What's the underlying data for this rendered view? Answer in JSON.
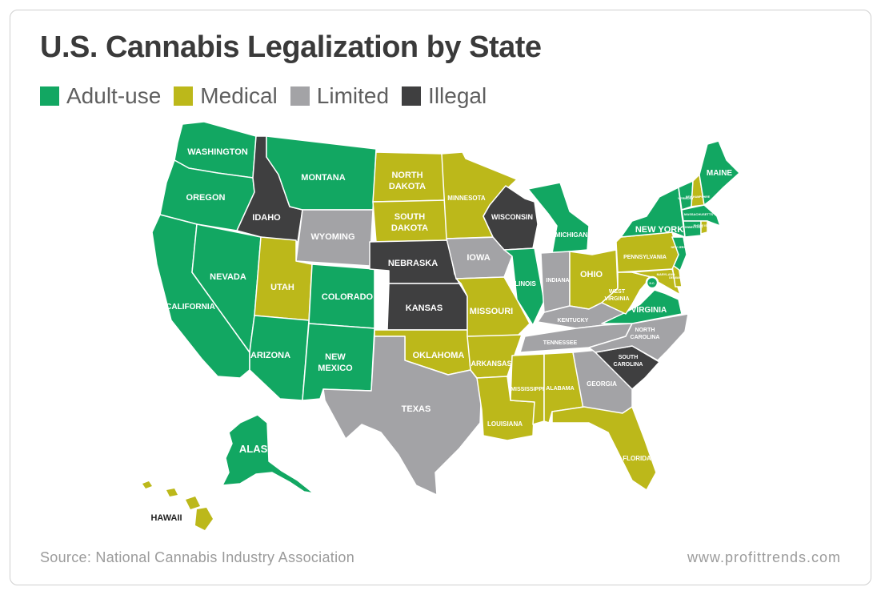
{
  "title": "U.S. Cannabis Legalization by State",
  "legend": [
    {
      "label": "Adult-use",
      "color": "#12a762"
    },
    {
      "label": "Medical",
      "color": "#bcb81a"
    },
    {
      "label": "Limited",
      "color": "#a3a3a6"
    },
    {
      "label": "Illegal",
      "color": "#3f3f40"
    }
  ],
  "source": "Source: National Cannabis Industry Association",
  "website": "www.profittrends.com",
  "colors": {
    "adult": "#12a762",
    "medical": "#bcb81a",
    "limited": "#a3a3a6",
    "illegal": "#3f3f40"
  },
  "states": {
    "washington": {
      "name": "WASHINGTON",
      "status": "Adult-use"
    },
    "oregon": {
      "name": "OREGON",
      "status": "Adult-use"
    },
    "california": {
      "name": "CALIFORNIA",
      "status": "Adult-use"
    },
    "nevada": {
      "name": "NEVADA",
      "status": "Adult-use"
    },
    "idaho": {
      "name": "IDAHO",
      "status": "Illegal"
    },
    "montana": {
      "name": "MONTANA",
      "status": "Adult-use"
    },
    "wyoming": {
      "name": "WYOMING",
      "status": "Limited"
    },
    "utah": {
      "name": "UTAH",
      "status": "Medical"
    },
    "colorado": {
      "name": "COLORADO",
      "status": "Adult-use"
    },
    "arizona": {
      "name": "ARIZONA",
      "status": "Adult-use"
    },
    "new_mexico": {
      "name_line1": "NEW",
      "name_line2": "MEXICO",
      "status": "Adult-use"
    },
    "north_dakota": {
      "name_line1": "NORTH",
      "name_line2": "DAKOTA",
      "status": "Medical"
    },
    "south_dakota": {
      "name_line1": "SOUTH",
      "name_line2": "DAKOTA",
      "status": "Medical"
    },
    "nebraska": {
      "name": "NEBRASKA",
      "status": "Illegal"
    },
    "kansas": {
      "name": "KANSAS",
      "status": "Illegal"
    },
    "oklahoma": {
      "name": "OKLAHOMA",
      "status": "Medical"
    },
    "texas": {
      "name": "TEXAS",
      "status": "Limited"
    },
    "minnesota": {
      "name": "MINNESOTA",
      "status": "Medical"
    },
    "iowa": {
      "name": "IOWA",
      "status": "Limited"
    },
    "missouri": {
      "name": "MISSOURI",
      "status": "Medical"
    },
    "arkansas": {
      "name": "ARKANSAS",
      "status": "Medical"
    },
    "louisiana": {
      "name": "LOUISIANA",
      "status": "Medical"
    },
    "wisconsin": {
      "name": "WISCONSIN",
      "status": "Illegal"
    },
    "illinois": {
      "name": "ILLINOIS",
      "status": "Adult-use"
    },
    "michigan": {
      "name": "MICHIGAN",
      "status": "Adult-use"
    },
    "indiana": {
      "name": "INDIANA",
      "status": "Limited"
    },
    "ohio": {
      "name": "OHIO",
      "status": "Medical"
    },
    "kentucky": {
      "name": "KENTUCKY",
      "status": "Limited"
    },
    "tennessee": {
      "name": "TENNESSEE",
      "status": "Limited"
    },
    "mississippi": {
      "name": "MISSISSIPPI",
      "status": "Medical"
    },
    "alabama": {
      "name": "ALABAMA",
      "status": "Medical"
    },
    "georgia": {
      "name": "GEORGIA",
      "status": "Limited"
    },
    "florida": {
      "name": "FLORIDA",
      "status": "Medical"
    },
    "south_carolina": {
      "name_line1": "SOUTH",
      "name_line2": "CAROLINA",
      "status": "Illegal"
    },
    "north_carolina": {
      "name_line1": "NORTH",
      "name_line2": "CAROLINA",
      "status": "Limited"
    },
    "virginia": {
      "name": "VIRGINIA",
      "status": "Adult-use"
    },
    "west_virginia": {
      "name_line1": "WEST",
      "name_line2": "VIRGINIA",
      "status": "Medical"
    },
    "pennsylvania": {
      "name": "PENNSYLVANIA",
      "status": "Medical"
    },
    "new_york": {
      "name": "NEW YORK",
      "status": "Adult-use"
    },
    "maine": {
      "name": "MAINE",
      "status": "Adult-use"
    },
    "vermont": {
      "name": "VERMONT",
      "status": "Adult-use"
    },
    "new_hampshire": {
      "name": "NEW HAMPSHIRE",
      "status": "Medical"
    },
    "massachusetts": {
      "name": "MASSACHUSETTS",
      "status": "Adult-use"
    },
    "connecticut": {
      "name": "CONNECTICUT",
      "status": "Adult-use"
    },
    "rhode_island": {
      "name": "RHODE ISLAND",
      "status": "Medical"
    },
    "new_jersey": {
      "name": "NEW JERSEY",
      "status": "Adult-use"
    },
    "delaware": {
      "name": "DELAWARE",
      "status": "Medical"
    },
    "maryland": {
      "name": "MARYLAND",
      "status": "Medical"
    },
    "dc": {
      "name": "D.C.",
      "status": "Adult-use"
    },
    "alaska": {
      "name": "ALASKA",
      "status": "Adult-use"
    },
    "hawaii": {
      "name": "HAWAII",
      "status": "Medical"
    }
  }
}
